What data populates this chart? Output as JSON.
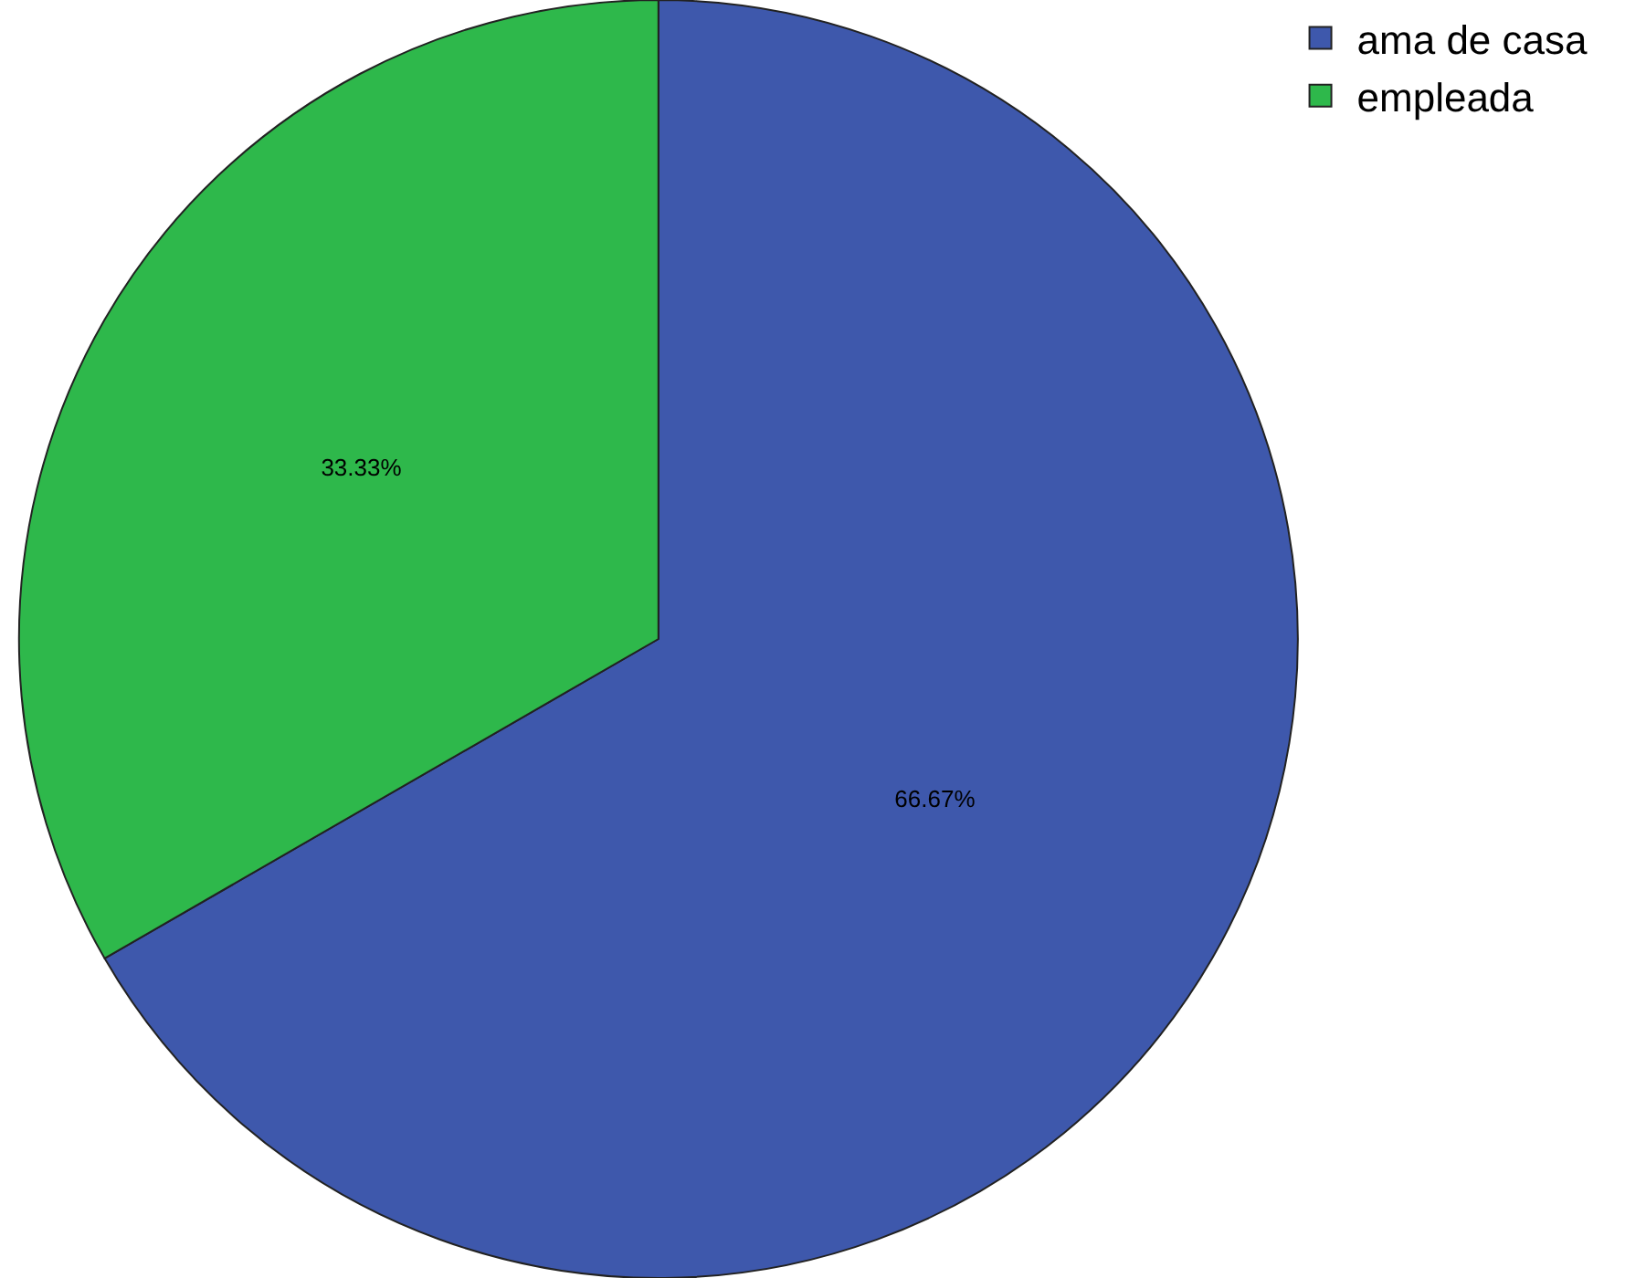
{
  "chart_data": {
    "type": "pie",
    "categories": [
      "ama de casa",
      "empleada"
    ],
    "values": [
      66.67,
      33.33
    ],
    "colors": [
      "#3e58ac",
      "#2eb84b"
    ],
    "value_labels": [
      "66.67%",
      "33.33%"
    ],
    "legend": "top right"
  }
}
